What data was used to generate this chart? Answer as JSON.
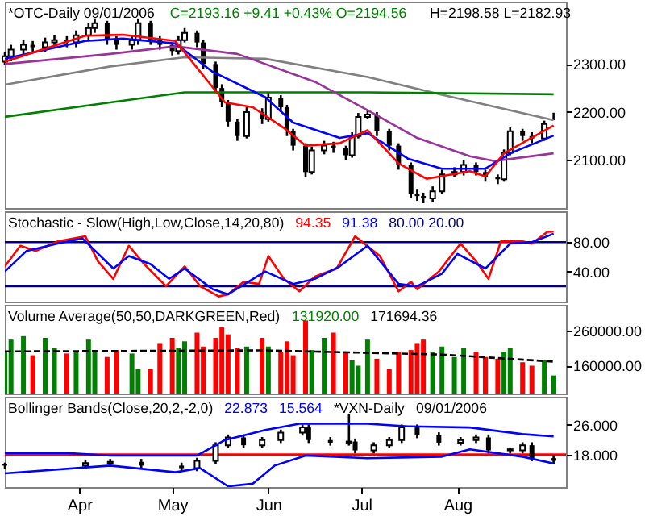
{
  "chart_data": [
    {
      "type": "candlestick",
      "title": "*OTC-Daily  09/01/2006",
      "subtitle": "C=2193.16  +9.41  +0.43%  O=2194.56",
      "annotations": [
        "H=2198.58  L=2182.93"
      ],
      "color": "#000000",
      "tick_labels": "y",
      "x": [
        "2006-03-08",
        "2006-03-10",
        "2006-03-14",
        "2006-03-17",
        "2006-03-21",
        "2006-03-24",
        "2006-03-28",
        "2006-03-31",
        "2006-04-04",
        "2006-04-06",
        "2006-04-10",
        "2006-04-13",
        "2006-04-18",
        "2006-04-20",
        "2006-04-24",
        "2006-04-27",
        "2006-05-01",
        "2006-05-03",
        "2006-05-05",
        "2006-05-09",
        "2006-05-11",
        "2006-05-15",
        "2006-05-17",
        "2006-05-19",
        "2006-05-22",
        "2006-05-25",
        "2006-05-30",
        "2006-06-01",
        "2006-06-05",
        "2006-06-07",
        "2006-06-09",
        "2006-06-13",
        "2006-06-15",
        "2006-06-19",
        "2006-06-22",
        "2006-06-26",
        "2006-06-28",
        "2006-06-30",
        "2006-07-03",
        "2006-07-06",
        "2006-07-10",
        "2006-07-13",
        "2006-07-17",
        "2006-07-19",
        "2006-07-21",
        "2006-07-24",
        "2006-07-27",
        "2006-07-31",
        "2006-08-03",
        "2006-08-07",
        "2006-08-10",
        "2006-08-14",
        "2006-08-16",
        "2006-08-18",
        "2006-08-22",
        "2006-08-25",
        "2006-08-29",
        "2006-09-01"
      ],
      "ohlc": [
        [
          2305,
          2326,
          2298,
          2316
        ],
        [
          2316,
          2340,
          2306,
          2330
        ],
        [
          2330,
          2350,
          2320,
          2340
        ],
        [
          2340,
          2348,
          2325,
          2335
        ],
        [
          2335,
          2355,
          2325,
          2345
        ],
        [
          2345,
          2360,
          2335,
          2350
        ],
        [
          2350,
          2358,
          2335,
          2345
        ],
        [
          2345,
          2370,
          2335,
          2360
        ],
        [
          2360,
          2385,
          2350,
          2375
        ],
        [
          2375,
          2395,
          2365,
          2385
        ],
        [
          2385,
          2390,
          2340,
          2350
        ],
        [
          2350,
          2358,
          2330,
          2340
        ],
        [
          2340,
          2360,
          2330,
          2350
        ],
        [
          2350,
          2395,
          2340,
          2385
        ],
        [
          2385,
          2390,
          2340,
          2350
        ],
        [
          2350,
          2358,
          2330,
          2340
        ],
        [
          2340,
          2345,
          2318,
          2327
        ],
        [
          2327,
          2358,
          2320,
          2350
        ],
        [
          2350,
          2375,
          2345,
          2365
        ],
        [
          2365,
          2370,
          2335,
          2345
        ],
        [
          2345,
          2350,
          2290,
          2300
        ],
        [
          2300,
          2305,
          2240,
          2250
        ],
        [
          2250,
          2258,
          2210,
          2220
        ],
        [
          2220,
          2225,
          2170,
          2180
        ],
        [
          2180,
          2185,
          2140,
          2150
        ],
        [
          2150,
          2210,
          2145,
          2200
        ],
        [
          2200,
          2208,
          2175,
          2185
        ],
        [
          2185,
          2240,
          2180,
          2230
        ],
        [
          2230,
          2235,
          2200,
          2210
        ],
        [
          2210,
          2215,
          2150,
          2160
        ],
        [
          2160,
          2165,
          2120,
          2130
        ],
        [
          2130,
          2135,
          2065,
          2075
        ],
        [
          2075,
          2128,
          2070,
          2120
        ],
        [
          2120,
          2140,
          2112,
          2130
        ],
        [
          2130,
          2138,
          2115,
          2125
        ],
        [
          2125,
          2130,
          2100,
          2110
        ],
        [
          2110,
          2158,
          2105,
          2150
        ],
        [
          2150,
          2198,
          2145,
          2190
        ],
        [
          2190,
          2205,
          2185,
          2195
        ],
        [
          2195,
          2200,
          2150,
          2160
        ],
        [
          2160,
          2165,
          2120,
          2130
        ],
        [
          2130,
          2135,
          2080,
          2090
        ],
        [
          2090,
          2095,
          2020,
          2030
        ],
        [
          2030,
          2040,
          2015,
          2025
        ],
        [
          2025,
          2032,
          2010,
          2020
        ],
        [
          2020,
          2045,
          2012,
          2035
        ],
        [
          2035,
          2080,
          2030,
          2070
        ],
        [
          2070,
          2085,
          2065,
          2075
        ],
        [
          2075,
          2100,
          2068,
          2090
        ],
        [
          2090,
          2095,
          2068,
          2075
        ],
        [
          2075,
          2080,
          2055,
          2065
        ],
        [
          2065,
          2070,
          2050,
          2060
        ],
        [
          2060,
          2122,
          2055,
          2115
        ],
        [
          2115,
          2168,
          2110,
          2160
        ],
        [
          2160,
          2165,
          2140,
          2150
        ],
        [
          2150,
          2158,
          2135,
          2145
        ],
        [
          2145,
          2182,
          2140,
          2175
        ],
        [
          2194.56,
          2198.58,
          2182.93,
          2193.16
        ]
      ],
      "series": [
        {
          "type": "line",
          "color": "#808080",
          "x": [
            "2006-03-08",
            "2006-04-11",
            "2006-05-05",
            "2006-05-31",
            "2006-07-03",
            "2006-07-27",
            "2006-09-01"
          ],
          "values": [
            2257,
            2295,
            2314,
            2311,
            2273,
            2236,
            2183
          ]
        },
        {
          "type": "line",
          "color": "#008000",
          "x": [
            "2006-03-08",
            "2006-04-11",
            "2006-05-05",
            "2006-07-03",
            "2006-09-01"
          ],
          "values": [
            2190,
            2220,
            2241,
            2241,
            2237
          ]
        },
        {
          "type": "line",
          "color": "#993399",
          "x": [
            "2006-03-08",
            "2006-04-11",
            "2006-05-02",
            "2006-05-22",
            "2006-06-16",
            "2006-07-03",
            "2006-07-19",
            "2006-08-05",
            "2006-08-13",
            "2006-09-01"
          ],
          "values": [
            2300,
            2321,
            2337,
            2321,
            2263,
            2204,
            2146,
            2108,
            2098,
            2114
          ]
        },
        {
          "type": "line",
          "color": "#0000ff",
          "x": [
            "2006-03-08",
            "2006-04-03",
            "2006-04-15",
            "2006-05-02",
            "2006-05-14",
            "2006-05-31",
            "2006-06-09",
            "2006-06-24",
            "2006-07-03",
            "2006-07-16",
            "2006-07-27",
            "2006-08-10",
            "2006-08-18",
            "2006-09-01"
          ],
          "values": [
            2311,
            2348,
            2353,
            2343,
            2284,
            2231,
            2178,
            2146,
            2156,
            2103,
            2082,
            2082,
            2114,
            2151
          ]
        },
        {
          "type": "line",
          "color": "#ff0000",
          "x": [
            "2006-03-08",
            "2006-04-03",
            "2006-04-15",
            "2006-05-02",
            "2006-05-10",
            "2006-05-18",
            "2006-05-27",
            "2006-06-06",
            "2006-06-13",
            "2006-06-24",
            "2006-07-03",
            "2006-07-13",
            "2006-07-22",
            "2006-08-05",
            "2006-08-10",
            "2006-08-16",
            "2006-09-01"
          ],
          "values": [
            2305,
            2359,
            2361,
            2348,
            2284,
            2220,
            2210,
            2167,
            2130,
            2135,
            2162,
            2093,
            2061,
            2077,
            2066,
            2114,
            2172
          ]
        }
      ],
      "xlim": [
        "2006-03-08",
        "2006-09-05"
      ],
      "ylim": [
        2000,
        2430
      ],
      "yticks": [
        {
          "value": 2100,
          "label": "2100.00"
        },
        {
          "value": 2200,
          "label": "2200.00"
        },
        {
          "value": 2300,
          "label": "2300.00"
        }
      ]
    },
    {
      "type": "line",
      "title": "Stochastic - Slow(High,Low,Close,14,20,80)",
      "annotations": [
        "94.35",
        "91.38",
        "80.00  20.00"
      ],
      "tick_labels": "y",
      "series": [
        {
          "color": "#ff0000",
          "x": [
            "2006-03-08",
            "2006-03-13",
            "2006-03-18",
            "2006-03-25",
            "2006-04-03",
            "2006-04-07",
            "2006-04-12",
            "2006-04-17",
            "2006-04-22",
            "2006-04-29",
            "2006-05-05",
            "2006-05-10",
            "2006-05-16",
            "2006-05-19",
            "2006-05-24",
            "2006-05-29",
            "2006-06-01",
            "2006-06-06",
            "2006-06-11",
            "2006-06-16",
            "2006-06-23",
            "2006-06-29",
            "2006-07-07",
            "2006-07-13",
            "2006-07-17",
            "2006-07-19",
            "2006-07-26",
            "2006-08-02",
            "2006-08-07",
            "2006-08-11",
            "2006-08-15",
            "2006-08-22",
            "2006-08-25",
            "2006-08-30",
            "2006-09-01"
          ],
          "values": [
            47,
            75,
            68,
            81,
            88,
            54,
            30,
            75,
            50,
            20,
            47,
            20,
            6,
            9,
            26,
            23,
            61,
            30,
            13,
            33,
            44,
            88,
            61,
            13,
            26,
            16,
            40,
            78,
            54,
            30,
            81,
            81,
            78,
            94,
            94.35
          ]
        },
        {
          "color": "#0000ff",
          "x": [
            "2006-03-08",
            "2006-03-15",
            "2006-03-25",
            "2006-04-02",
            "2006-04-12",
            "2006-04-17",
            "2006-04-24",
            "2006-04-30",
            "2006-05-05",
            "2006-05-14",
            "2006-05-19",
            "2006-05-31",
            "2006-06-09",
            "2006-06-16",
            "2006-06-24",
            "2006-07-03",
            "2006-07-13",
            "2006-07-19",
            "2006-07-27",
            "2006-08-01",
            "2006-08-10",
            "2006-08-18",
            "2006-08-25",
            "2006-09-01"
          ],
          "values": [
            40,
            68,
            78,
            85,
            44,
            61,
            50,
            30,
            44,
            16,
            9,
            40,
            23,
            30,
            47,
            75,
            23,
            20,
            37,
            64,
            44,
            78,
            80,
            91.38
          ]
        }
      ],
      "ref_lines": [
        {
          "axis": "y",
          "value": 80,
          "color": "#000080"
        },
        {
          "axis": "y",
          "value": 20,
          "color": "#000080"
        }
      ],
      "xlim": [
        "2006-03-08",
        "2006-09-05"
      ],
      "ylim": [
        -1,
        122
      ],
      "yticks": [
        {
          "value": 40,
          "label": "40.00"
        },
        {
          "value": 80,
          "label": "80.00"
        }
      ]
    },
    {
      "type": "bar",
      "title": "Volume Average(50,50,DARKGREEN,Red)",
      "annotations": [
        "131920.00",
        "171694.36"
      ],
      "tick_labels": "y",
      "x": [
        "2006-03-08",
        "2006-03-10",
        "2006-03-14",
        "2006-03-17",
        "2006-03-21",
        "2006-03-24",
        "2006-03-28",
        "2006-03-31",
        "2006-04-04",
        "2006-04-06",
        "2006-04-10",
        "2006-04-13",
        "2006-04-18",
        "2006-04-20",
        "2006-04-24",
        "2006-04-27",
        "2006-05-01",
        "2006-05-03",
        "2006-05-05",
        "2006-05-09",
        "2006-05-11",
        "2006-05-15",
        "2006-05-17",
        "2006-05-19",
        "2006-05-22",
        "2006-05-25",
        "2006-05-30",
        "2006-06-01",
        "2006-06-05",
        "2006-06-07",
        "2006-06-09",
        "2006-06-13",
        "2006-06-15",
        "2006-06-19",
        "2006-06-22",
        "2006-06-26",
        "2006-06-28",
        "2006-06-30",
        "2006-07-03",
        "2006-07-06",
        "2006-07-10",
        "2006-07-13",
        "2006-07-17",
        "2006-07-19",
        "2006-07-21",
        "2006-07-24",
        "2006-07-27",
        "2006-07-31",
        "2006-08-03",
        "2006-08-07",
        "2006-08-10",
        "2006-08-14",
        "2006-08-16",
        "2006-08-18",
        "2006-08-22",
        "2006-08-25",
        "2006-08-29",
        "2006-09-01"
      ],
      "values": [
        200000,
        235000,
        245000,
        190000,
        240000,
        210000,
        195000,
        200000,
        235000,
        200000,
        185000,
        205000,
        195000,
        150000,
        150000,
        225000,
        240000,
        210000,
        230000,
        255000,
        215000,
        240000,
        270000,
        250000,
        210000,
        215000,
        240000,
        215000,
        200000,
        230000,
        190000,
        290000,
        205000,
        240000,
        255000,
        200000,
        175000,
        160000,
        235000,
        180000,
        150000,
        200000,
        205000,
        225000,
        235000,
        200000,
        215000,
        185000,
        210000,
        200000,
        185000,
        180000,
        200000,
        210000,
        170000,
        160000,
        175000,
        131920
      ],
      "colors": [
        "#008000",
        "#008000",
        "#008000",
        "#ff0000",
        "#008000",
        "#008000",
        "#ff0000",
        "#008000",
        "#008000",
        "#008000",
        "#ff0000",
        "#ff0000",
        "#008000",
        "#008000",
        "#ff0000",
        "#ff0000",
        "#ff0000",
        "#008000",
        "#008000",
        "#ff0000",
        "#ff0000",
        "#ff0000",
        "#ff0000",
        "#ff0000",
        "#ff0000",
        "#008000",
        "#ff0000",
        "#008000",
        "#ff0000",
        "#ff0000",
        "#ff0000",
        "#ff0000",
        "#008000",
        "#008000",
        "#ff0000",
        "#ff0000",
        "#008000",
        "#008000",
        "#008000",
        "#ff0000",
        "#ff0000",
        "#ff0000",
        "#ff0000",
        "#ff0000",
        "#ff0000",
        "#008000",
        "#008000",
        "#008000",
        "#008000",
        "#ff0000",
        "#ff0000",
        "#ff0000",
        "#008000",
        "#008000",
        "#ff0000",
        "#ff0000",
        "#008000",
        "#008000"
      ],
      "series": [
        {
          "type": "line",
          "color": "#000000",
          "line_style": "dashed",
          "x": [
            "2006-03-08",
            "2006-05-31",
            "2006-07-03",
            "2006-07-27",
            "2006-09-01"
          ],
          "values": [
            201000,
            204000,
            197000,
            192000,
            171694.36
          ]
        }
      ],
      "xlim": [
        "2006-03-08",
        "2006-09-05"
      ],
      "ylim": [
        80000,
        335000
      ],
      "yticks": [
        {
          "value": 160000,
          "label": "160000.00"
        },
        {
          "value": 260000,
          "label": "260000.00"
        }
      ]
    },
    {
      "type": "candlestick",
      "title": "Bollinger Bands(Close,20,2,-2,0)",
      "annotations": [
        "22.873",
        "15.564",
        "*VXN-Daily",
        "09/01/2006"
      ],
      "color": "#000000",
      "x": [
        "2006-03-08",
        "2006-04-03",
        "2006-04-11",
        "2006-04-21",
        "2006-05-04",
        "2006-05-09",
        "2006-05-15",
        "2006-05-19",
        "2006-05-24",
        "2006-05-30",
        "2006-06-05",
        "2006-06-12",
        "2006-06-14",
        "2006-06-21",
        "2006-06-27",
        "2006-06-29",
        "2006-07-05",
        "2006-07-10",
        "2006-07-14",
        "2006-07-19",
        "2006-07-26",
        "2006-08-02",
        "2006-08-07",
        "2006-08-11",
        "2006-08-18",
        "2006-08-22",
        "2006-08-25",
        "2006-09-01"
      ],
      "ohlc": [
        [
          15.4,
          15.8,
          14.2,
          15
        ],
        [
          15,
          16.5,
          14.2,
          15.7
        ],
        [
          15.7,
          16.8,
          14.9,
          16
        ],
        [
          16,
          16.8,
          14.2,
          15
        ],
        [
          15,
          15.8,
          13.5,
          14.3
        ],
        [
          14.3,
          17.1,
          13.5,
          16.3
        ],
        [
          16.3,
          21.3,
          15.5,
          20.5
        ],
        [
          20.5,
          23.4,
          19.7,
          22.6
        ],
        [
          22.6,
          23.4,
          19.7,
          20.5
        ],
        [
          20.5,
          22.7,
          19.7,
          21.9
        ],
        [
          21.9,
          24.7,
          21.1,
          23.9
        ],
        [
          23.9,
          26.1,
          23.1,
          25.3
        ],
        [
          25.3,
          26.1,
          21.1,
          21.9
        ],
        [
          21.9,
          22.7,
          20.4,
          21.2
        ],
        [
          21.2,
          28.8,
          20.4,
          21.5
        ],
        [
          21.5,
          22.3,
          18.3,
          19.1
        ],
        [
          19.1,
          21.3,
          18.3,
          20.5
        ],
        [
          20.5,
          22.7,
          19.7,
          21.9
        ],
        [
          21.9,
          26.1,
          21.1,
          25.3
        ],
        [
          25.3,
          26.1,
          22.4,
          23.2
        ],
        [
          23.2,
          24,
          20.4,
          21.2
        ],
        [
          21.2,
          22.7,
          20.4,
          21.9
        ],
        [
          21.9,
          23.4,
          21.1,
          22.6
        ],
        [
          22.6,
          23.4,
          18.3,
          19.1
        ],
        [
          19.1,
          19.9,
          18.3,
          19.4
        ],
        [
          19.1,
          21.3,
          18.3,
          20.5
        ],
        [
          20.5,
          21.3,
          16.2,
          17
        ],
        [
          17,
          17.8,
          15.5,
          16.3
        ]
      ],
      "series": [
        {
          "type": "line",
          "color": "#0000ff",
          "x": [
            "2006-03-08",
            "2006-03-28",
            "2006-04-11",
            "2006-05-09",
            "2006-05-18",
            "2006-05-31",
            "2006-06-11",
            "2006-07-03",
            "2006-07-16",
            "2006-08-05",
            "2006-08-22",
            "2006-09-01"
          ],
          "values": [
            18.4,
            18.4,
            17.7,
            17.7,
            21.9,
            24.6,
            26.3,
            26.3,
            25.6,
            25.3,
            23.5,
            22.873
          ]
        },
        {
          "type": "line",
          "color": "#0000ff",
          "x": [
            "2006-03-08",
            "2006-04-11",
            "2006-05-02",
            "2006-05-10",
            "2006-05-19",
            "2006-05-27",
            "2006-06-03",
            "2006-06-13",
            "2006-07-03",
            "2006-07-27",
            "2006-08-05",
            "2006-08-22",
            "2006-09-01"
          ],
          "values": [
            12.9,
            15,
            13.2,
            14.3,
            9.4,
            10.1,
            15,
            17.7,
            17,
            17.4,
            19.4,
            17.4,
            15.564
          ]
        }
      ],
      "ref_lines": [
        {
          "axis": "y",
          "value": 18,
          "color": "#ff0000"
        }
      ],
      "xlim": [
        "2006-03-08",
        "2006-09-05"
      ],
      "xticks": [
        {
          "value": "2006-04-01",
          "label": "Apr"
        },
        {
          "value": "2006-05-01",
          "label": "May"
        },
        {
          "value": "2006-06-01",
          "label": "Jun"
        },
        {
          "value": "2006-07-01",
          "label": "Jul"
        },
        {
          "value": "2006-08-01",
          "label": "Aug"
        }
      ],
      "ylim": [
        9.2,
        33.6
      ],
      "yticks": [
        {
          "value": 18,
          "label": "18.000"
        },
        {
          "value": 26,
          "label": "26.000"
        }
      ]
    }
  ]
}
